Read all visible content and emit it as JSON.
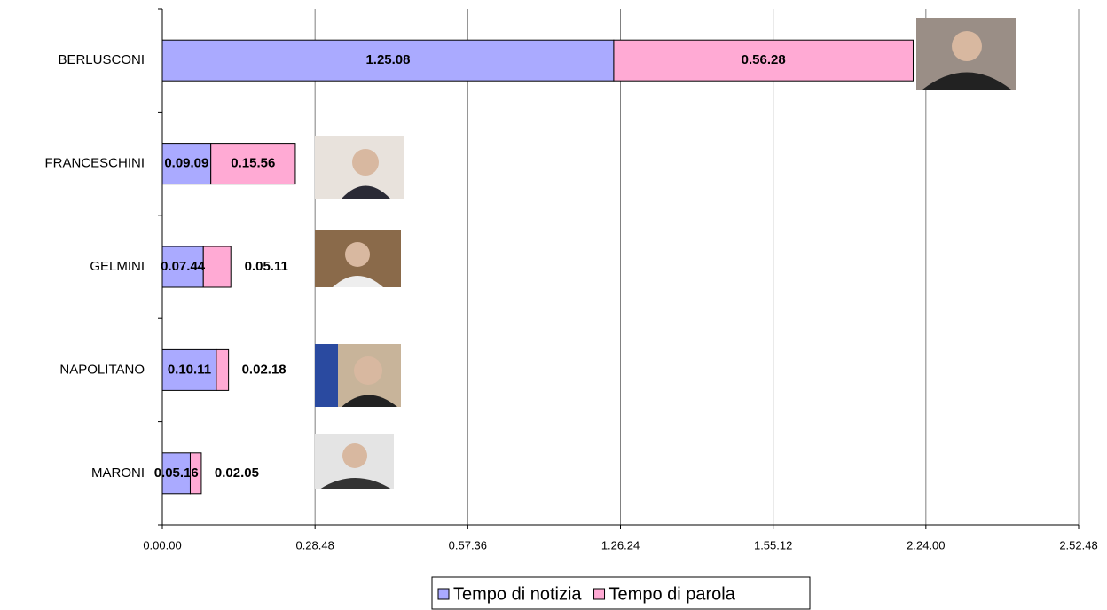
{
  "chart_data": {
    "type": "stacked-barh",
    "categories": [
      "BERLUSCONI",
      "FRANCESCHINI",
      "GELMINI",
      "NAPOLITANO",
      "MARONI"
    ],
    "series": [
      {
        "name": "Tempo di notizia",
        "color": "#aaaaff",
        "values": [
          5108,
          549,
          464,
          611,
          316
        ],
        "value_labels": [
          "1.25.08",
          "0.09.09",
          "0.07.44",
          "0.10.11",
          "0.05.16"
        ]
      },
      {
        "name": "Tempo di parola",
        "color": "#ffaad4",
        "values": [
          3388,
          956,
          311,
          138,
          125
        ],
        "value_labels": [
          "0.56.28",
          "0.15.56",
          "0.05.11",
          "0.02.18",
          "0.02.05"
        ]
      }
    ],
    "xlim": [
      0,
      10368
    ],
    "xticks": [
      {
        "value": 0,
        "label": "0.00.00"
      },
      {
        "value": 1728,
        "label": "0.28.48"
      },
      {
        "value": 3456,
        "label": "0.57.36"
      },
      {
        "value": 5184,
        "label": "1.26.24"
      },
      {
        "value": 6912,
        "label": "1.55.12"
      },
      {
        "value": 8640,
        "label": "2.24.00"
      },
      {
        "value": 10368,
        "label": "2.52.48"
      }
    ],
    "grid": true,
    "legend": "bottom"
  }
}
